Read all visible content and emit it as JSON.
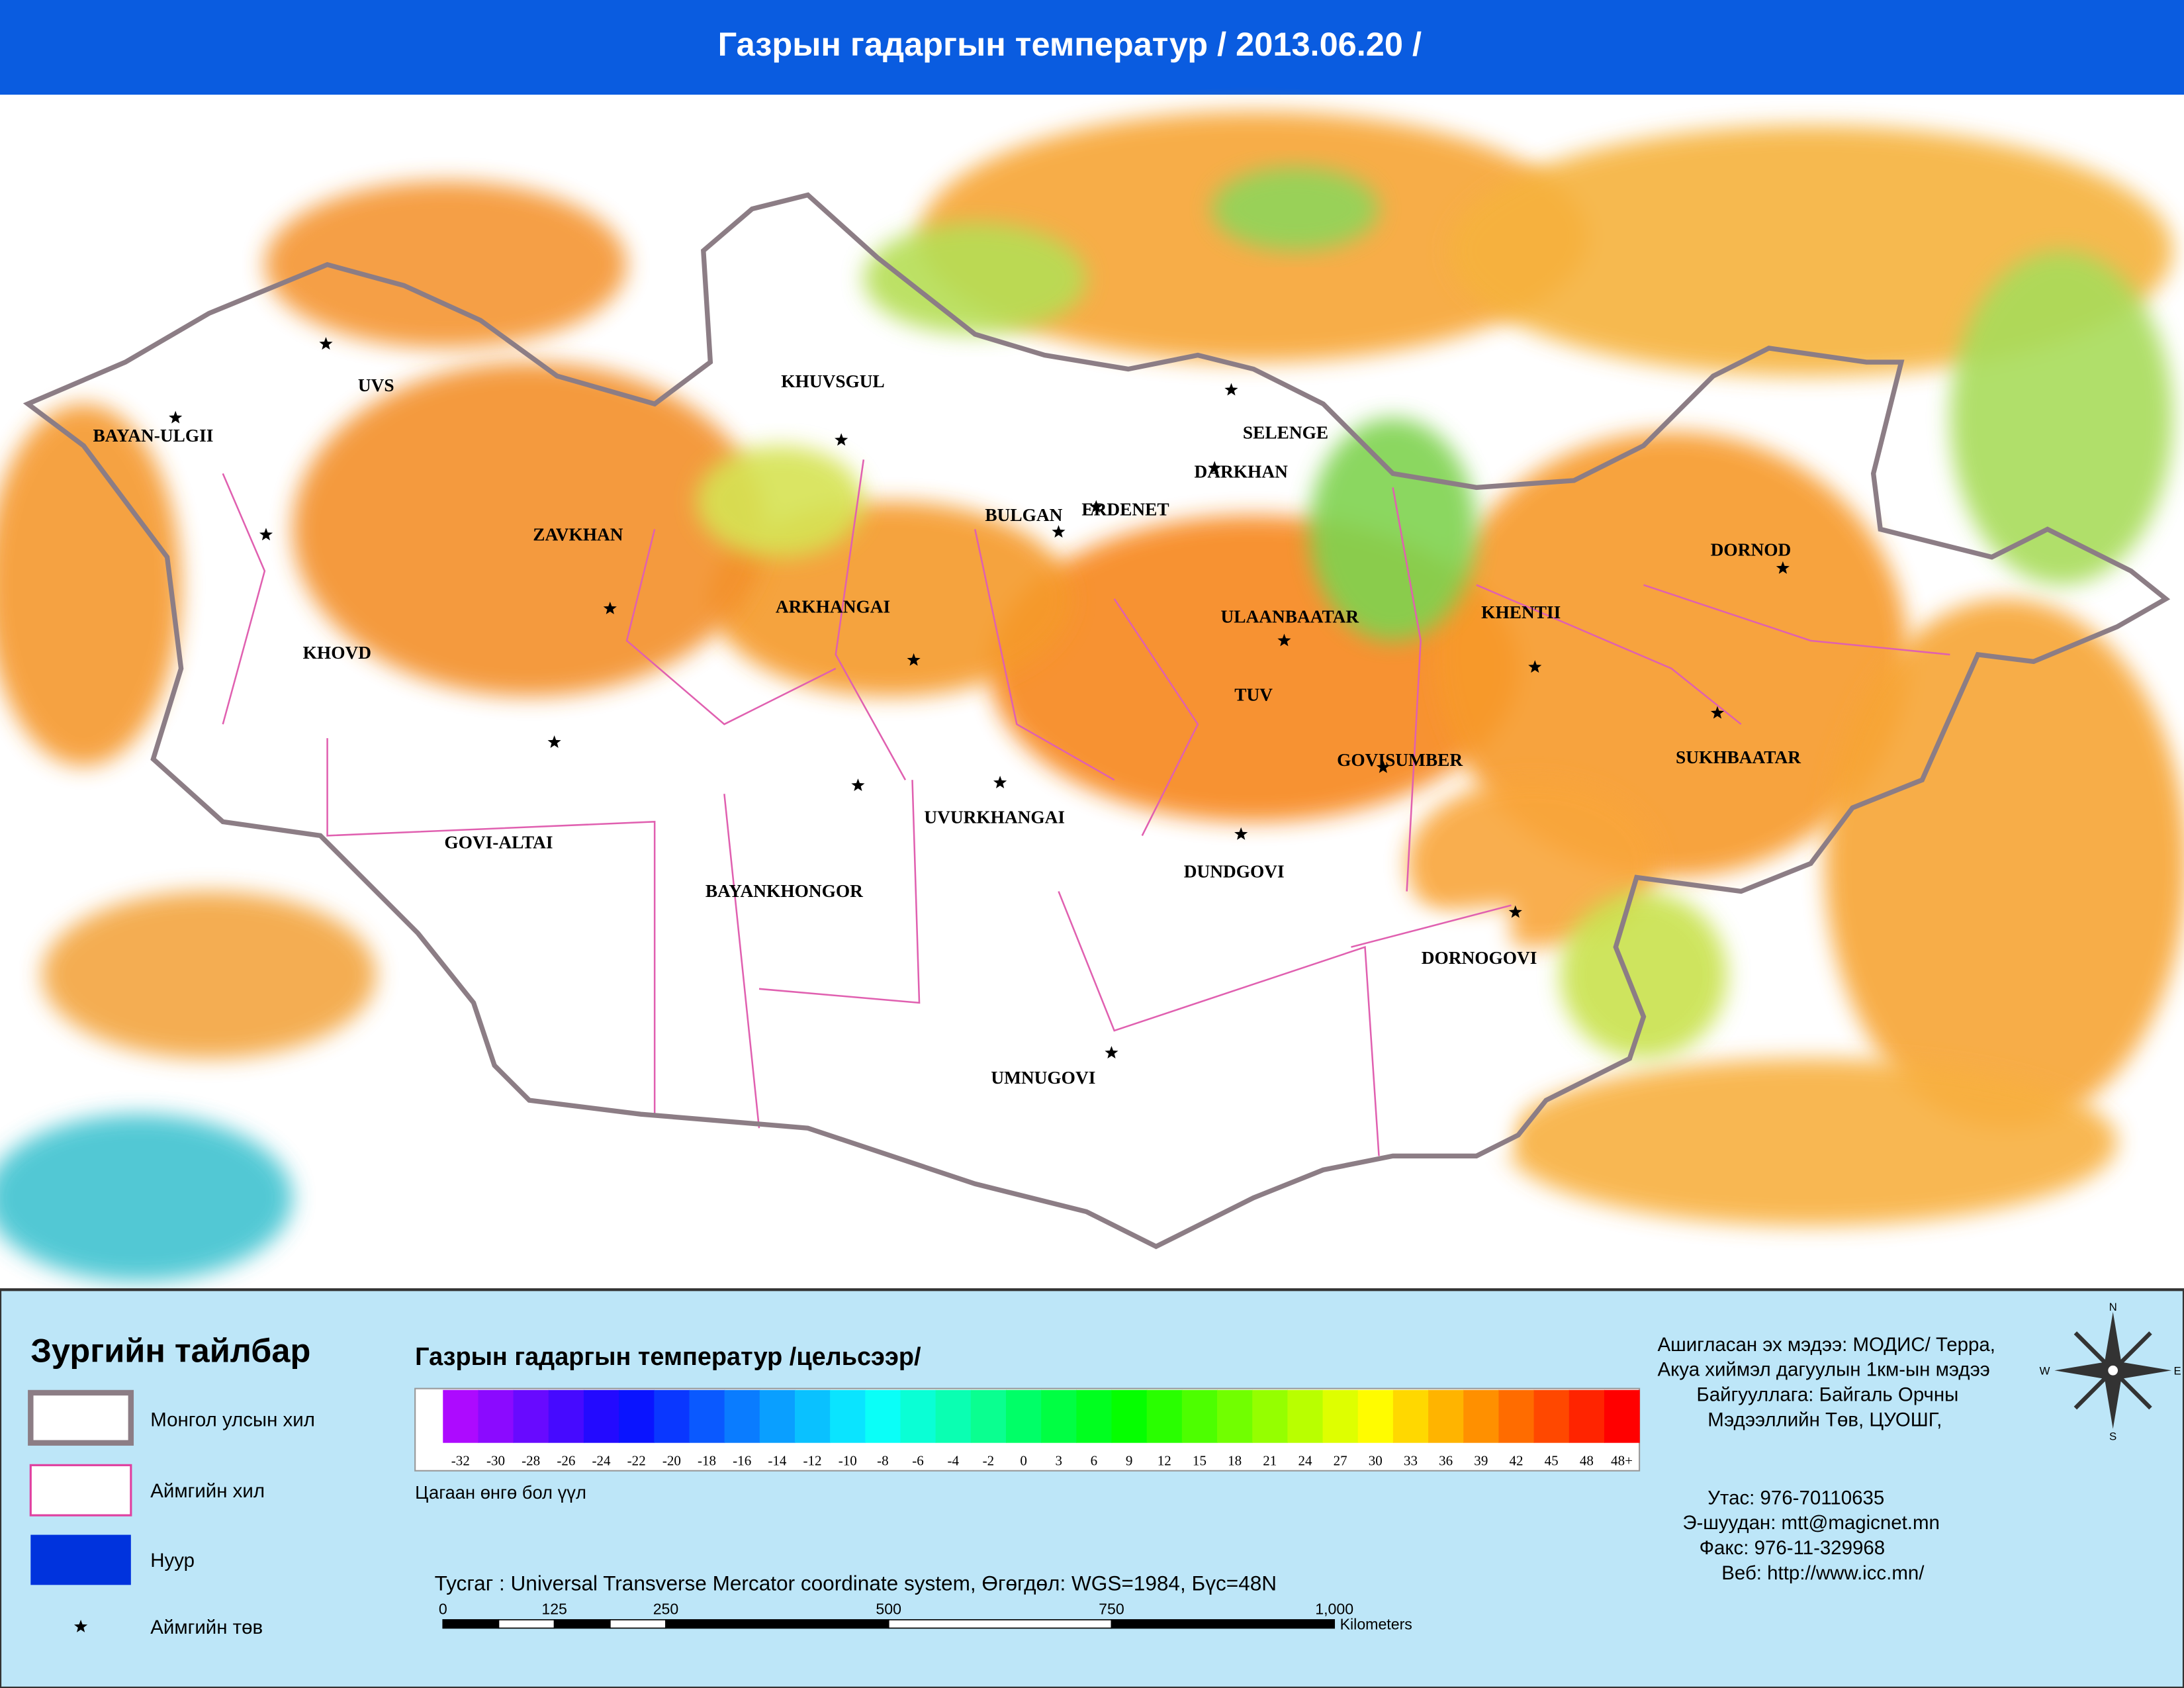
{
  "header": {
    "title": "Газрын гадаргын температур / 2013.06.20  /"
  },
  "map": {
    "labels": [
      "BAYAN-ULGII",
      "UVS",
      "KHUVSGUL",
      "ZAVKHAN",
      "KHOVD",
      "ARKHANGAI",
      "BULGAN",
      "ERDENET",
      "SELENGE",
      "DARKHAN",
      "ULAANBAATAR",
      "TUV",
      "KHENTII",
      "DORNOD",
      "SUKHBAATAR",
      "GOVISUMBER",
      "DUNDGOVI",
      "DORNOGOVI",
      "UVURKHANGAI",
      "BAYANKHONGOR",
      "GOVI-ALTAI",
      "UMNUGOVI"
    ]
  },
  "legend": {
    "title": "Зургийн тайлбар",
    "items": [
      "Монгол улсын хил",
      "Аймгийн хил",
      "Нуур",
      "Аймгийн төв"
    ]
  },
  "colorbar": {
    "title": "Газрын гадаргын температур /цельсээр/",
    "labels": [
      "-32",
      "-30",
      "-28",
      "-26",
      "-24",
      "-22",
      "-20",
      "-18",
      "-16",
      "-14",
      "-12",
      "-10",
      "-8",
      "-6",
      "-4",
      "-2",
      "0",
      "3",
      "6",
      "9",
      "12",
      "15",
      "18",
      "21",
      "24",
      "27",
      "30",
      "33",
      "36",
      "39",
      "42",
      "45",
      "48",
      "48+"
    ],
    "note": "Цагаан өнгө бол үүл"
  },
  "projection": "Тусгаг : Universal Transverse Mercator coordinate system, Өгөгдөл: WGS=1984, Бүс=48N",
  "scale": {
    "labels": [
      "0",
      "125",
      "250",
      "500",
      "750",
      "1,000"
    ],
    "unit": "Kilometers"
  },
  "source": [
    "Ашигласан эх мэдээ: МОДИС/ Терра,",
    "Акуа хиймэл дагуулын 1км-ын мэдээ",
    "Байгууллага: Байгаль Орчны",
    "Мэдээллийн Төв, ЦУОШГ,"
  ],
  "contacts": [
    "Утас:   976-70110635",
    "Э-шуудан:    mtt@magicnet.mn",
    "Факс:  976-11-329968",
    "Веб:      http://www.icc.mn/"
  ],
  "compass": [
    "N",
    "E",
    "S",
    "W"
  ]
}
